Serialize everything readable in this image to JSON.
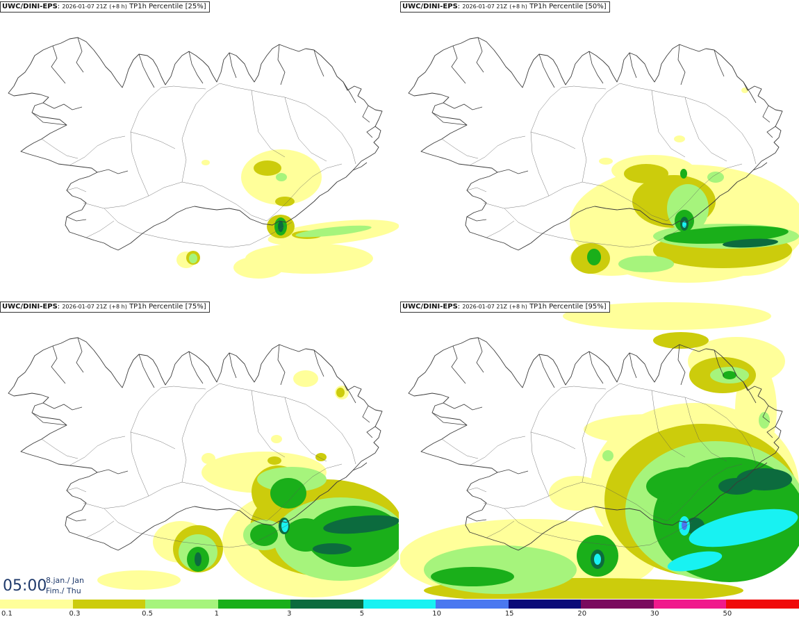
{
  "panels": [
    {
      "source": "UWC/DINI-EPS",
      "run": "2026-01-07 21Z",
      "lead": "(+8 h)",
      "product": "TP1h Percentile [25%]"
    },
    {
      "source": "UWC/DINI-EPS",
      "run": "2026-01-07 21Z",
      "lead": "(+8 h)",
      "product": "TP1h Percentile [50%]"
    },
    {
      "source": "UWC/DINI-EPS",
      "run": "2026-01-07 21Z",
      "lead": "(+8 h)",
      "product": "TP1h Percentile [75%]"
    },
    {
      "source": "UWC/DINI-EPS",
      "run": "2026-01-07 21Z",
      "lead": "(+8 h)",
      "product": "TP1h Percentile [95%]"
    }
  ],
  "timestamp": {
    "time": "05:00",
    "date": "8.jan./ Jan",
    "day": "Fim./ Thu"
  },
  "legend": {
    "labels": [
      "0.1",
      "0.3",
      "0.5",
      "1",
      "3",
      "5",
      "10",
      "15",
      "20",
      "30",
      "50"
    ],
    "colors": [
      "#ffff9a",
      "#cccc0c",
      "#a6f47c",
      "#1aaf1a",
      "#0c6b3e",
      "#18f2f2",
      "#4a78f0",
      "#0a0a78",
      "#7a0a5e",
      "#f01a8c",
      "#f00a0a"
    ]
  }
}
